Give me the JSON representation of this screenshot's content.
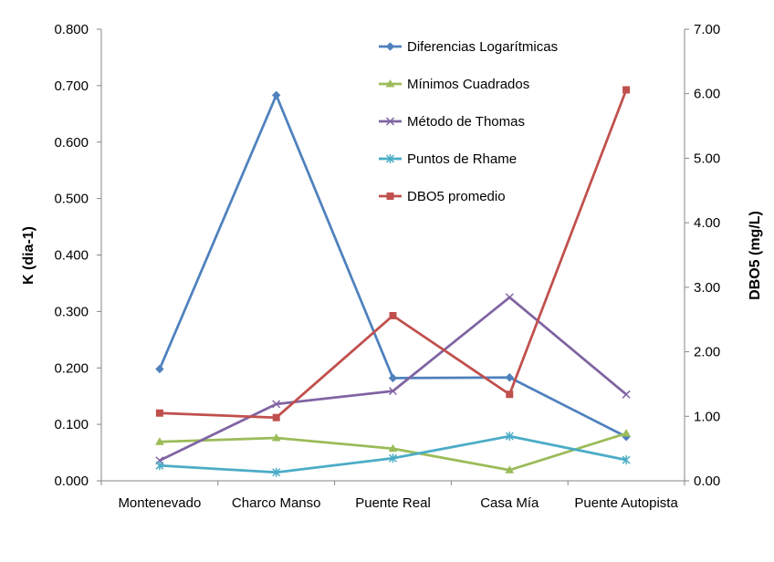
{
  "chart_data": {
    "type": "line",
    "categories": [
      "Montenevado",
      "Charco Manso",
      "Puente Real",
      "Casa Mía",
      "Puente Autopista"
    ],
    "y_left": {
      "label": "K (dia-1)",
      "ylim": [
        0,
        0.8
      ],
      "ticks": [
        "0.000",
        "0.100",
        "0.200",
        "0.300",
        "0.400",
        "0.500",
        "0.600",
        "0.700",
        "0.800"
      ]
    },
    "y_right": {
      "label": "DBO5 (mg/L)",
      "ylim": [
        0,
        7
      ],
      "ticks": [
        "0.00",
        "1.00",
        "2.00",
        "3.00",
        "4.00",
        "5.00",
        "6.00",
        "7.00"
      ]
    },
    "grid": false,
    "legend_position": "top-right",
    "series": [
      {
        "name": "Diferencias Logarítmicas",
        "axis": "left",
        "color": "#4F81BD",
        "marker": "diamond",
        "values": [
          0.198,
          0.683,
          0.182,
          0.183,
          0.078
        ]
      },
      {
        "name": "Mínimos Cuadrados",
        "axis": "left",
        "color": "#9BBB59",
        "marker": "triangle",
        "values": [
          0.069,
          0.076,
          0.057,
          0.019,
          0.084
        ]
      },
      {
        "name": "Método de Thomas",
        "axis": "left",
        "color": "#8064A2",
        "marker": "x",
        "values": [
          0.036,
          0.136,
          0.159,
          0.325,
          0.153
        ]
      },
      {
        "name": "Puntos de Rhame",
        "axis": "left",
        "color": "#4BACC6",
        "marker": "star",
        "values": [
          0.027,
          0.015,
          0.04,
          0.079,
          0.037
        ]
      },
      {
        "name": "DBO5 promedio",
        "axis": "right",
        "color": "#C0504D",
        "marker": "square",
        "values": [
          1.05,
          0.98,
          2.56,
          1.34,
          6.06
        ]
      }
    ]
  }
}
